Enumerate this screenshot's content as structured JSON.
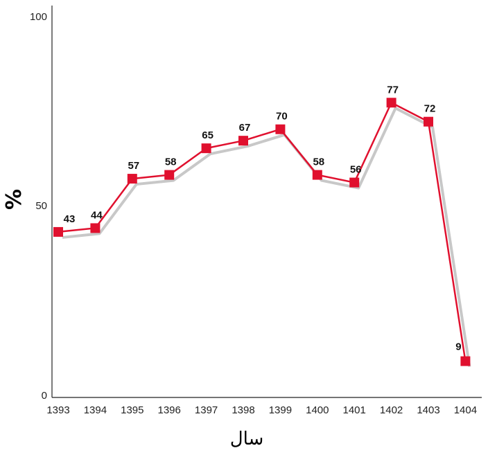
{
  "chart_data": {
    "type": "line",
    "title": "",
    "xlabel": "سال",
    "ylabel": "%",
    "categories": [
      "1393",
      "1394",
      "1395",
      "1396",
      "1397",
      "1398",
      "1399",
      "1400",
      "1401",
      "1402",
      "1403",
      "1404"
    ],
    "series": [
      {
        "values": [
          43,
          44,
          57,
          58,
          65,
          67,
          70,
          58,
          56,
          77,
          72,
          9
        ],
        "color": "#e0102e"
      }
    ],
    "data_labels": [
      "43",
      "44",
      "57",
      "58",
      "65",
      "67",
      "70",
      "58",
      "56",
      "77",
      "72",
      "9"
    ],
    "yticks": [
      "0",
      "50",
      "100"
    ],
    "ylim": [
      0,
      100
    ],
    "grid": false,
    "legend": "none",
    "shadow_color": "#c8c8c8"
  }
}
